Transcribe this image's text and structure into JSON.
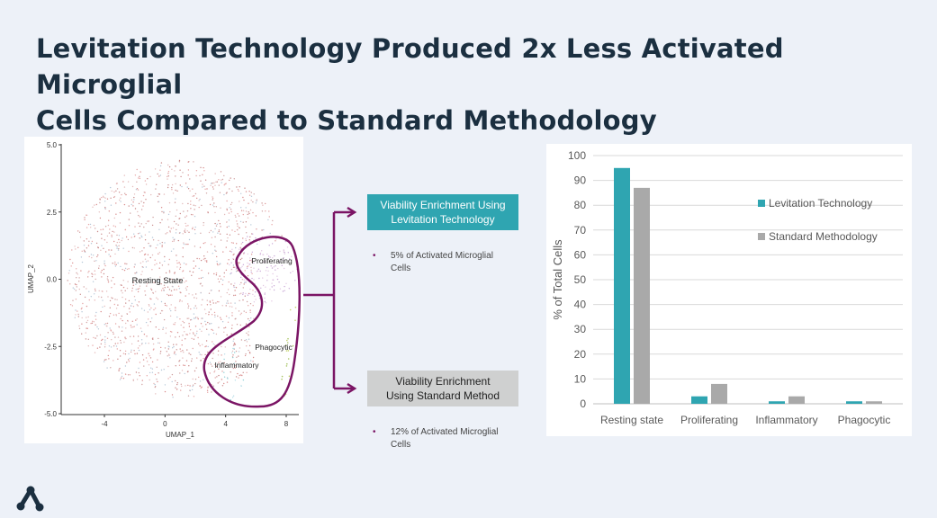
{
  "title": {
    "line1": "Levitation Technology Produced 2x Less Activated Microglial",
    "line2": "Cells Compared to Standard Methodology"
  },
  "umap": {
    "x_label": "UMAP_1",
    "y_label": "UMAP_2",
    "x_ticks": [
      "-4",
      "0",
      "4",
      "8"
    ],
    "y_ticks": [
      "5.0",
      "2.5",
      "0.0",
      "-2.5",
      "-5.0"
    ],
    "cluster_labels": {
      "resting": "Resting State",
      "proliferating": "Proliferating",
      "phagocytic": "Phagocytic",
      "inflammatory": "Inflammatory"
    }
  },
  "callouts": {
    "levitation": {
      "box_line1": "Viability Enrichment Using",
      "box_line2": "Levitation Technology",
      "bullet_line1": "5% of Activated Microglial",
      "bullet_line2": "Cells",
      "bullet_symbol": "•"
    },
    "standard": {
      "box_line1": "Viability Enrichment",
      "box_line2": "Using Standard Method",
      "bullet_line1": "12% of Activated Microglial",
      "bullet_line2": "Cells",
      "bullet_symbol": "•"
    }
  },
  "colors": {
    "levitation": "#2fa5b1",
    "standard": "#a9a9a9",
    "accent": "#7b1565",
    "title": "#1b2f40"
  },
  "chart_data": {
    "type": "bar",
    "categories": [
      "Resting state",
      "Proliferating",
      "Inflammatory",
      "Phagocytic"
    ],
    "series": [
      {
        "name": "Levitation Technology",
        "values": [
          95,
          3,
          1,
          1
        ]
      },
      {
        "name": "Standard Methodology",
        "values": [
          87,
          8,
          3,
          1
        ]
      }
    ],
    "ylabel": "% of Total Cells",
    "ylim": [
      0,
      100
    ],
    "yticks": [
      0,
      10,
      20,
      30,
      40,
      50,
      60,
      70,
      80,
      90,
      100
    ],
    "grid": true,
    "legend_position": "right"
  },
  "logo_icon": "company-logo-icon"
}
